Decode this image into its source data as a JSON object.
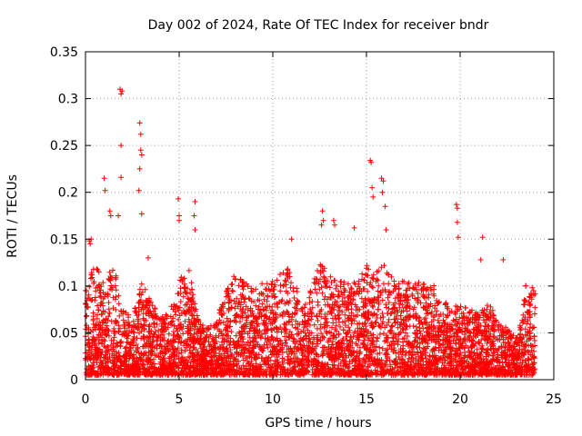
{
  "chart_data": {
    "type": "scatter",
    "title": "Day 002 of 2024, Rate Of TEC Index for receiver bndr",
    "xlabel": "GPS time / hours",
    "ylabel": "ROTI / TECUs",
    "xlim": [
      0,
      25
    ],
    "ylim": [
      0,
      0.35
    ],
    "x_ticks": [
      0,
      5,
      10,
      15,
      20,
      25
    ],
    "x_tick_labels": [
      "0",
      "5",
      "10",
      "15",
      "20",
      "25"
    ],
    "y_ticks": [
      0,
      0.05,
      0.1,
      0.15,
      0.2,
      0.25,
      0.3,
      0.35
    ],
    "y_tick_labels": [
      "0",
      "0.05",
      "0.1",
      "0.15",
      "0.2",
      "0.25",
      "0.3",
      "0.35"
    ],
    "grid": true,
    "marker": "+",
    "series": [
      {
        "name": "ROTI",
        "color": "#ff0000",
        "bulk_envelope": {
          "x_range": [
            0,
            24
          ],
          "description_values": "dense scatter mostly between 0 and 0.1 TECU/min across all hours",
          "envelope": [
            {
              "x": 0.0,
              "max": 0.09
            },
            {
              "x": 0.5,
              "max": 0.12
            },
            {
              "x": 1.0,
              "max": 0.1
            },
            {
              "x": 1.5,
              "max": 0.12
            },
            {
              "x": 2.0,
              "max": 0.07
            },
            {
              "x": 2.5,
              "max": 0.06
            },
            {
              "x": 3.0,
              "max": 0.1
            },
            {
              "x": 3.5,
              "max": 0.08
            },
            {
              "x": 4.0,
              "max": 0.06
            },
            {
              "x": 4.5,
              "max": 0.07
            },
            {
              "x": 5.0,
              "max": 0.1
            },
            {
              "x": 5.5,
              "max": 0.12
            },
            {
              "x": 6.0,
              "max": 0.06
            },
            {
              "x": 6.5,
              "max": 0.05
            },
            {
              "x": 7.0,
              "max": 0.06
            },
            {
              "x": 7.5,
              "max": 0.09
            },
            {
              "x": 8.0,
              "max": 0.11
            },
            {
              "x": 8.5,
              "max": 0.1
            },
            {
              "x": 9.0,
              "max": 0.09
            },
            {
              "x": 9.5,
              "max": 0.1
            },
            {
              "x": 10.0,
              "max": 0.1
            },
            {
              "x": 10.5,
              "max": 0.11
            },
            {
              "x": 11.0,
              "max": 0.12
            },
            {
              "x": 11.5,
              "max": 0.07
            },
            {
              "x": 12.0,
              "max": 0.09
            },
            {
              "x": 12.5,
              "max": 0.12
            },
            {
              "x": 13.0,
              "max": 0.11
            },
            {
              "x": 13.5,
              "max": 0.1
            },
            {
              "x": 14.0,
              "max": 0.1
            },
            {
              "x": 14.5,
              "max": 0.1
            },
            {
              "x": 15.0,
              "max": 0.12
            },
            {
              "x": 15.5,
              "max": 0.11
            },
            {
              "x": 16.0,
              "max": 0.12
            },
            {
              "x": 16.5,
              "max": 0.1
            },
            {
              "x": 17.0,
              "max": 0.1
            },
            {
              "x": 17.5,
              "max": 0.1
            },
            {
              "x": 18.0,
              "max": 0.1
            },
            {
              "x": 18.5,
              "max": 0.1
            },
            {
              "x": 19.0,
              "max": 0.09
            },
            {
              "x": 19.5,
              "max": 0.07
            },
            {
              "x": 20.0,
              "max": 0.08
            },
            {
              "x": 20.5,
              "max": 0.07
            },
            {
              "x": 21.0,
              "max": 0.07
            },
            {
              "x": 21.5,
              "max": 0.08
            },
            {
              "x": 22.0,
              "max": 0.06
            },
            {
              "x": 22.5,
              "max": 0.05
            },
            {
              "x": 23.0,
              "max": 0.04
            },
            {
              "x": 23.5,
              "max": 0.1
            },
            {
              "x": 24.0,
              "max": 0.09
            }
          ]
        },
        "spikes": [
          {
            "x": 0.2,
            "y": 0.148
          },
          {
            "x": 0.25,
            "y": 0.145
          },
          {
            "x": 0.3,
            "y": 0.15
          },
          {
            "x": 1.0,
            "y": 0.215
          },
          {
            "x": 1.05,
            "y": 0.202
          },
          {
            "x": 1.3,
            "y": 0.18
          },
          {
            "x": 1.35,
            "y": 0.175
          },
          {
            "x": 1.75,
            "y": 0.175
          },
          {
            "x": 1.85,
            "y": 0.31
          },
          {
            "x": 1.9,
            "y": 0.305
          },
          {
            "x": 1.95,
            "y": 0.308
          },
          {
            "x": 1.9,
            "y": 0.25
          },
          {
            "x": 1.9,
            "y": 0.216
          },
          {
            "x": 2.9,
            "y": 0.274
          },
          {
            "x": 2.95,
            "y": 0.262
          },
          {
            "x": 2.95,
            "y": 0.245
          },
          {
            "x": 3.0,
            "y": 0.24
          },
          {
            "x": 2.9,
            "y": 0.225
          },
          {
            "x": 2.85,
            "y": 0.202
          },
          {
            "x": 3.0,
            "y": 0.177
          },
          {
            "x": 3.35,
            "y": 0.13
          },
          {
            "x": 4.95,
            "y": 0.193
          },
          {
            "x": 5.0,
            "y": 0.175
          },
          {
            "x": 5.0,
            "y": 0.17
          },
          {
            "x": 5.85,
            "y": 0.19
          },
          {
            "x": 5.8,
            "y": 0.175
          },
          {
            "x": 5.85,
            "y": 0.16
          },
          {
            "x": 11.0,
            "y": 0.15
          },
          {
            "x": 12.65,
            "y": 0.18
          },
          {
            "x": 12.7,
            "y": 0.17
          },
          {
            "x": 12.6,
            "y": 0.165
          },
          {
            "x": 13.25,
            "y": 0.17
          },
          {
            "x": 13.3,
            "y": 0.165
          },
          {
            "x": 14.35,
            "y": 0.162
          },
          {
            "x": 15.2,
            "y": 0.234
          },
          {
            "x": 15.25,
            "y": 0.232
          },
          {
            "x": 15.3,
            "y": 0.205
          },
          {
            "x": 15.35,
            "y": 0.195
          },
          {
            "x": 15.8,
            "y": 0.215
          },
          {
            "x": 15.9,
            "y": 0.212
          },
          {
            "x": 15.85,
            "y": 0.2
          },
          {
            "x": 16.0,
            "y": 0.185
          },
          {
            "x": 16.05,
            "y": 0.16
          },
          {
            "x": 19.8,
            "y": 0.187
          },
          {
            "x": 19.85,
            "y": 0.183
          },
          {
            "x": 19.85,
            "y": 0.168
          },
          {
            "x": 19.9,
            "y": 0.152
          },
          {
            "x": 21.2,
            "y": 0.152
          },
          {
            "x": 21.1,
            "y": 0.128
          },
          {
            "x": 22.3,
            "y": 0.128
          }
        ]
      }
    ]
  }
}
